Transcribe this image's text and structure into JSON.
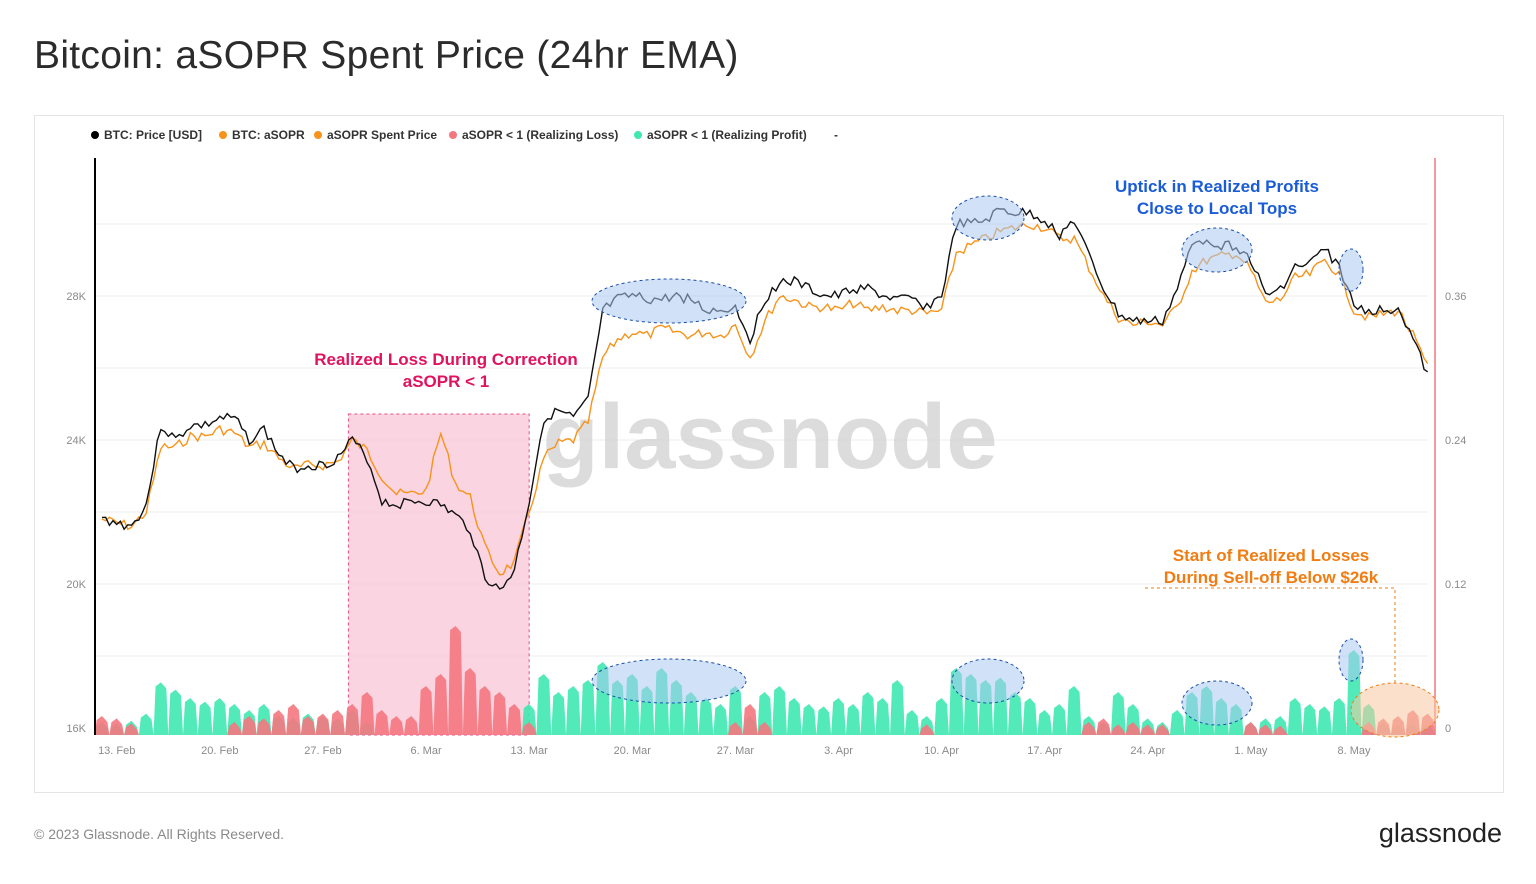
{
  "title": "Bitcoin: aSOPR Spent Price (24hr EMA)",
  "footer": "© 2023 Glassnode. All Rights Reserved.",
  "brand": "glassnode",
  "watermark": "glassnode",
  "chart_data": {
    "type": "line",
    "title": "Bitcoin: aSOPR Spent Price (24hr EMA)",
    "legend": [
      {
        "label": "BTC: Price [USD]",
        "color": "#000000"
      },
      {
        "label": "BTC: aSOPR",
        "color": "#f7931a",
        "muted": true
      },
      {
        "label": "aSOPR Spent Price",
        "color": "#f7931a"
      },
      {
        "label": "aSOPR < 1 (Realizing Loss)",
        "color": "#f4777f"
      },
      {
        "label": "aSOPR < 1 (Realizing Profit)",
        "color": "#3fe8b0"
      },
      {
        "label": "-",
        "color": "#333333"
      }
    ],
    "legend_position": "top-left",
    "x_start": "2023-02-12",
    "x_ticks": [
      "13. Feb",
      "20. Feb",
      "27. Feb",
      "6. Mar",
      "13. Mar",
      "20. Mar",
      "27. Mar",
      "3. Apr",
      "10. Apr",
      "17. Apr",
      "24. Apr",
      "1. May",
      "8. May"
    ],
    "y_left": {
      "ticks": [
        "16K",
        "20K",
        "24K",
        "28K"
      ],
      "values": [
        16000,
        20000,
        24000,
        28000
      ],
      "range": [
        16000,
        32000
      ],
      "scale": "log-like"
    },
    "y_right": {
      "ticks": [
        "0",
        "0.12",
        "0.24",
        "0.36"
      ],
      "values": [
        0,
        0.12,
        0.24,
        0.36
      ],
      "range": [
        0,
        0.48
      ]
    },
    "grid": true,
    "series": [
      {
        "name": "BTC: Price [USD]",
        "color": "#111111",
        "axis": "left",
        "values": [
          21.8,
          21.7,
          21.6,
          22.2,
          24.4,
          24.0,
          24.4,
          24.4,
          24.6,
          24.6,
          24.0,
          24.3,
          23.6,
          23.2,
          23.3,
          23.3,
          23.5,
          24.0,
          23.5,
          22.3,
          22.2,
          22.3,
          22.3,
          22.2,
          21.9,
          21.5,
          20.2,
          19.8,
          20.4,
          22.3,
          24.6,
          24.8,
          24.6,
          25.1,
          27.6,
          27.9,
          28.0,
          27.9,
          27.9,
          28.0,
          27.9,
          27.6,
          27.6,
          27.7,
          26.8,
          27.9,
          28.4,
          28.4,
          28.2,
          28.0,
          28.0,
          28.2,
          28.2,
          28.0,
          27.9,
          27.9,
          27.7,
          28.0,
          30.0,
          30.0,
          30.1,
          30.4,
          30.3,
          30.3,
          30.1,
          29.7,
          30.1,
          29.1,
          28.2,
          27.5,
          27.3,
          27.3,
          27.3,
          28.2,
          29.4,
          29.6,
          29.4,
          29.4,
          29.0,
          28.0,
          28.2,
          28.8,
          28.9,
          29.3,
          28.8,
          27.7,
          27.6,
          27.6,
          27.7,
          26.8,
          25.8
        ],
        "unit": "thousand USD"
      },
      {
        "name": "aSOPR Spent Price",
        "color": "#f7931a",
        "axis": "left",
        "values": [
          21.8,
          21.7,
          21.6,
          22.0,
          23.8,
          23.8,
          24.1,
          24.1,
          24.3,
          24.2,
          23.8,
          23.9,
          23.5,
          23.2,
          23.3,
          23.3,
          23.4,
          24.0,
          23.7,
          23.0,
          22.5,
          22.5,
          22.6,
          24.2,
          22.8,
          22.4,
          21.0,
          20.3,
          20.6,
          22.0,
          23.5,
          23.9,
          24.0,
          24.5,
          26.3,
          26.8,
          27.0,
          26.9,
          27.1,
          27.0,
          26.9,
          27.0,
          26.9,
          27.2,
          26.3,
          27.3,
          28.0,
          27.9,
          27.7,
          27.7,
          27.6,
          27.8,
          27.6,
          27.7,
          27.6,
          27.6,
          27.5,
          27.6,
          29.2,
          29.4,
          29.6,
          29.8,
          29.9,
          30.0,
          29.9,
          29.6,
          29.6,
          28.8,
          28.0,
          27.4,
          27.2,
          27.3,
          27.2,
          27.7,
          28.7,
          29.0,
          29.1,
          29.2,
          28.7,
          27.8,
          27.9,
          28.5,
          28.6,
          29.0,
          28.6,
          27.6,
          27.4,
          27.5,
          27.6,
          26.9,
          26.0
        ],
        "unit": "thousand USD"
      },
      {
        "name": "aSOPR < 1 (Realizing Loss)",
        "color": "#f4777f",
        "axis": "right",
        "values": [
          0.01,
          0.008,
          0.004,
          0,
          0,
          0,
          0,
          0,
          0,
          0.005,
          0.01,
          0.008,
          0.015,
          0.02,
          0.01,
          0.012,
          0.015,
          0.02,
          0.03,
          0.015,
          0.01,
          0.01,
          0.035,
          0.045,
          0.085,
          0.05,
          0.035,
          0.03,
          0.02,
          0.005,
          0,
          0,
          0,
          0,
          0,
          0,
          0,
          0,
          0,
          0,
          0,
          0,
          0,
          0.005,
          0.02,
          0.005,
          0,
          0,
          0,
          0,
          0,
          0,
          0,
          0,
          0,
          0,
          0.003,
          0,
          0,
          0,
          0,
          0,
          0,
          0,
          0,
          0,
          0,
          0.005,
          0.008,
          0.003,
          0.005,
          0.003,
          0.003,
          0,
          0,
          0,
          0,
          0,
          0.005,
          0.003,
          0.002,
          0,
          0,
          0,
          0,
          0,
          0.005,
          0.008,
          0.01,
          0.015,
          0.012
        ]
      },
      {
        "name": "aSOPR < 1 (Realizing Profit)",
        "color": "#3fe8b0",
        "axis": "right",
        "values": [
          0.005,
          0.004,
          0.006,
          0.012,
          0.038,
          0.032,
          0.025,
          0.022,
          0.025,
          0.02,
          0.015,
          0.02,
          0.01,
          0.008,
          0.012,
          0.01,
          0.008,
          0.015,
          0.005,
          0,
          0,
          0,
          0,
          0,
          0,
          0,
          0,
          0,
          0,
          0.02,
          0.045,
          0.03,
          0.035,
          0.04,
          0.055,
          0.04,
          0.045,
          0.035,
          0.05,
          0.04,
          0.03,
          0.025,
          0.02,
          0.035,
          0.01,
          0.03,
          0.035,
          0.025,
          0.02,
          0.018,
          0.025,
          0.02,
          0.03,
          0.025,
          0.04,
          0.015,
          0.01,
          0.025,
          0.05,
          0.045,
          0.04,
          0.042,
          0.03,
          0.025,
          0.015,
          0.02,
          0.035,
          0.01,
          0.005,
          0.03,
          0.02,
          0.008,
          0.005,
          0.015,
          0.03,
          0.035,
          0.025,
          0.02,
          0.005,
          0.008,
          0.01,
          0.025,
          0.02,
          0.018,
          0.025,
          0.065,
          0.02,
          0.005,
          0.003,
          0.004,
          0.003
        ]
      }
    ],
    "highlight_range": {
      "start": "2023-03-01",
      "end": "2023-03-13",
      "color": "#f9c6d8"
    },
    "annotations": [
      {
        "lines": [
          "Realized Loss During Correction",
          "aSOPR < 1"
        ],
        "color": "#e0135e"
      },
      {
        "lines": [
          "Uptick in Realized Profits",
          "Close to Local Tops"
        ],
        "color": "#1a5bd6"
      },
      {
        "lines": [
          "Start of Realized Losses",
          "During Sell-off Below $26k"
        ],
        "color": "#f07c12"
      }
    ]
  }
}
